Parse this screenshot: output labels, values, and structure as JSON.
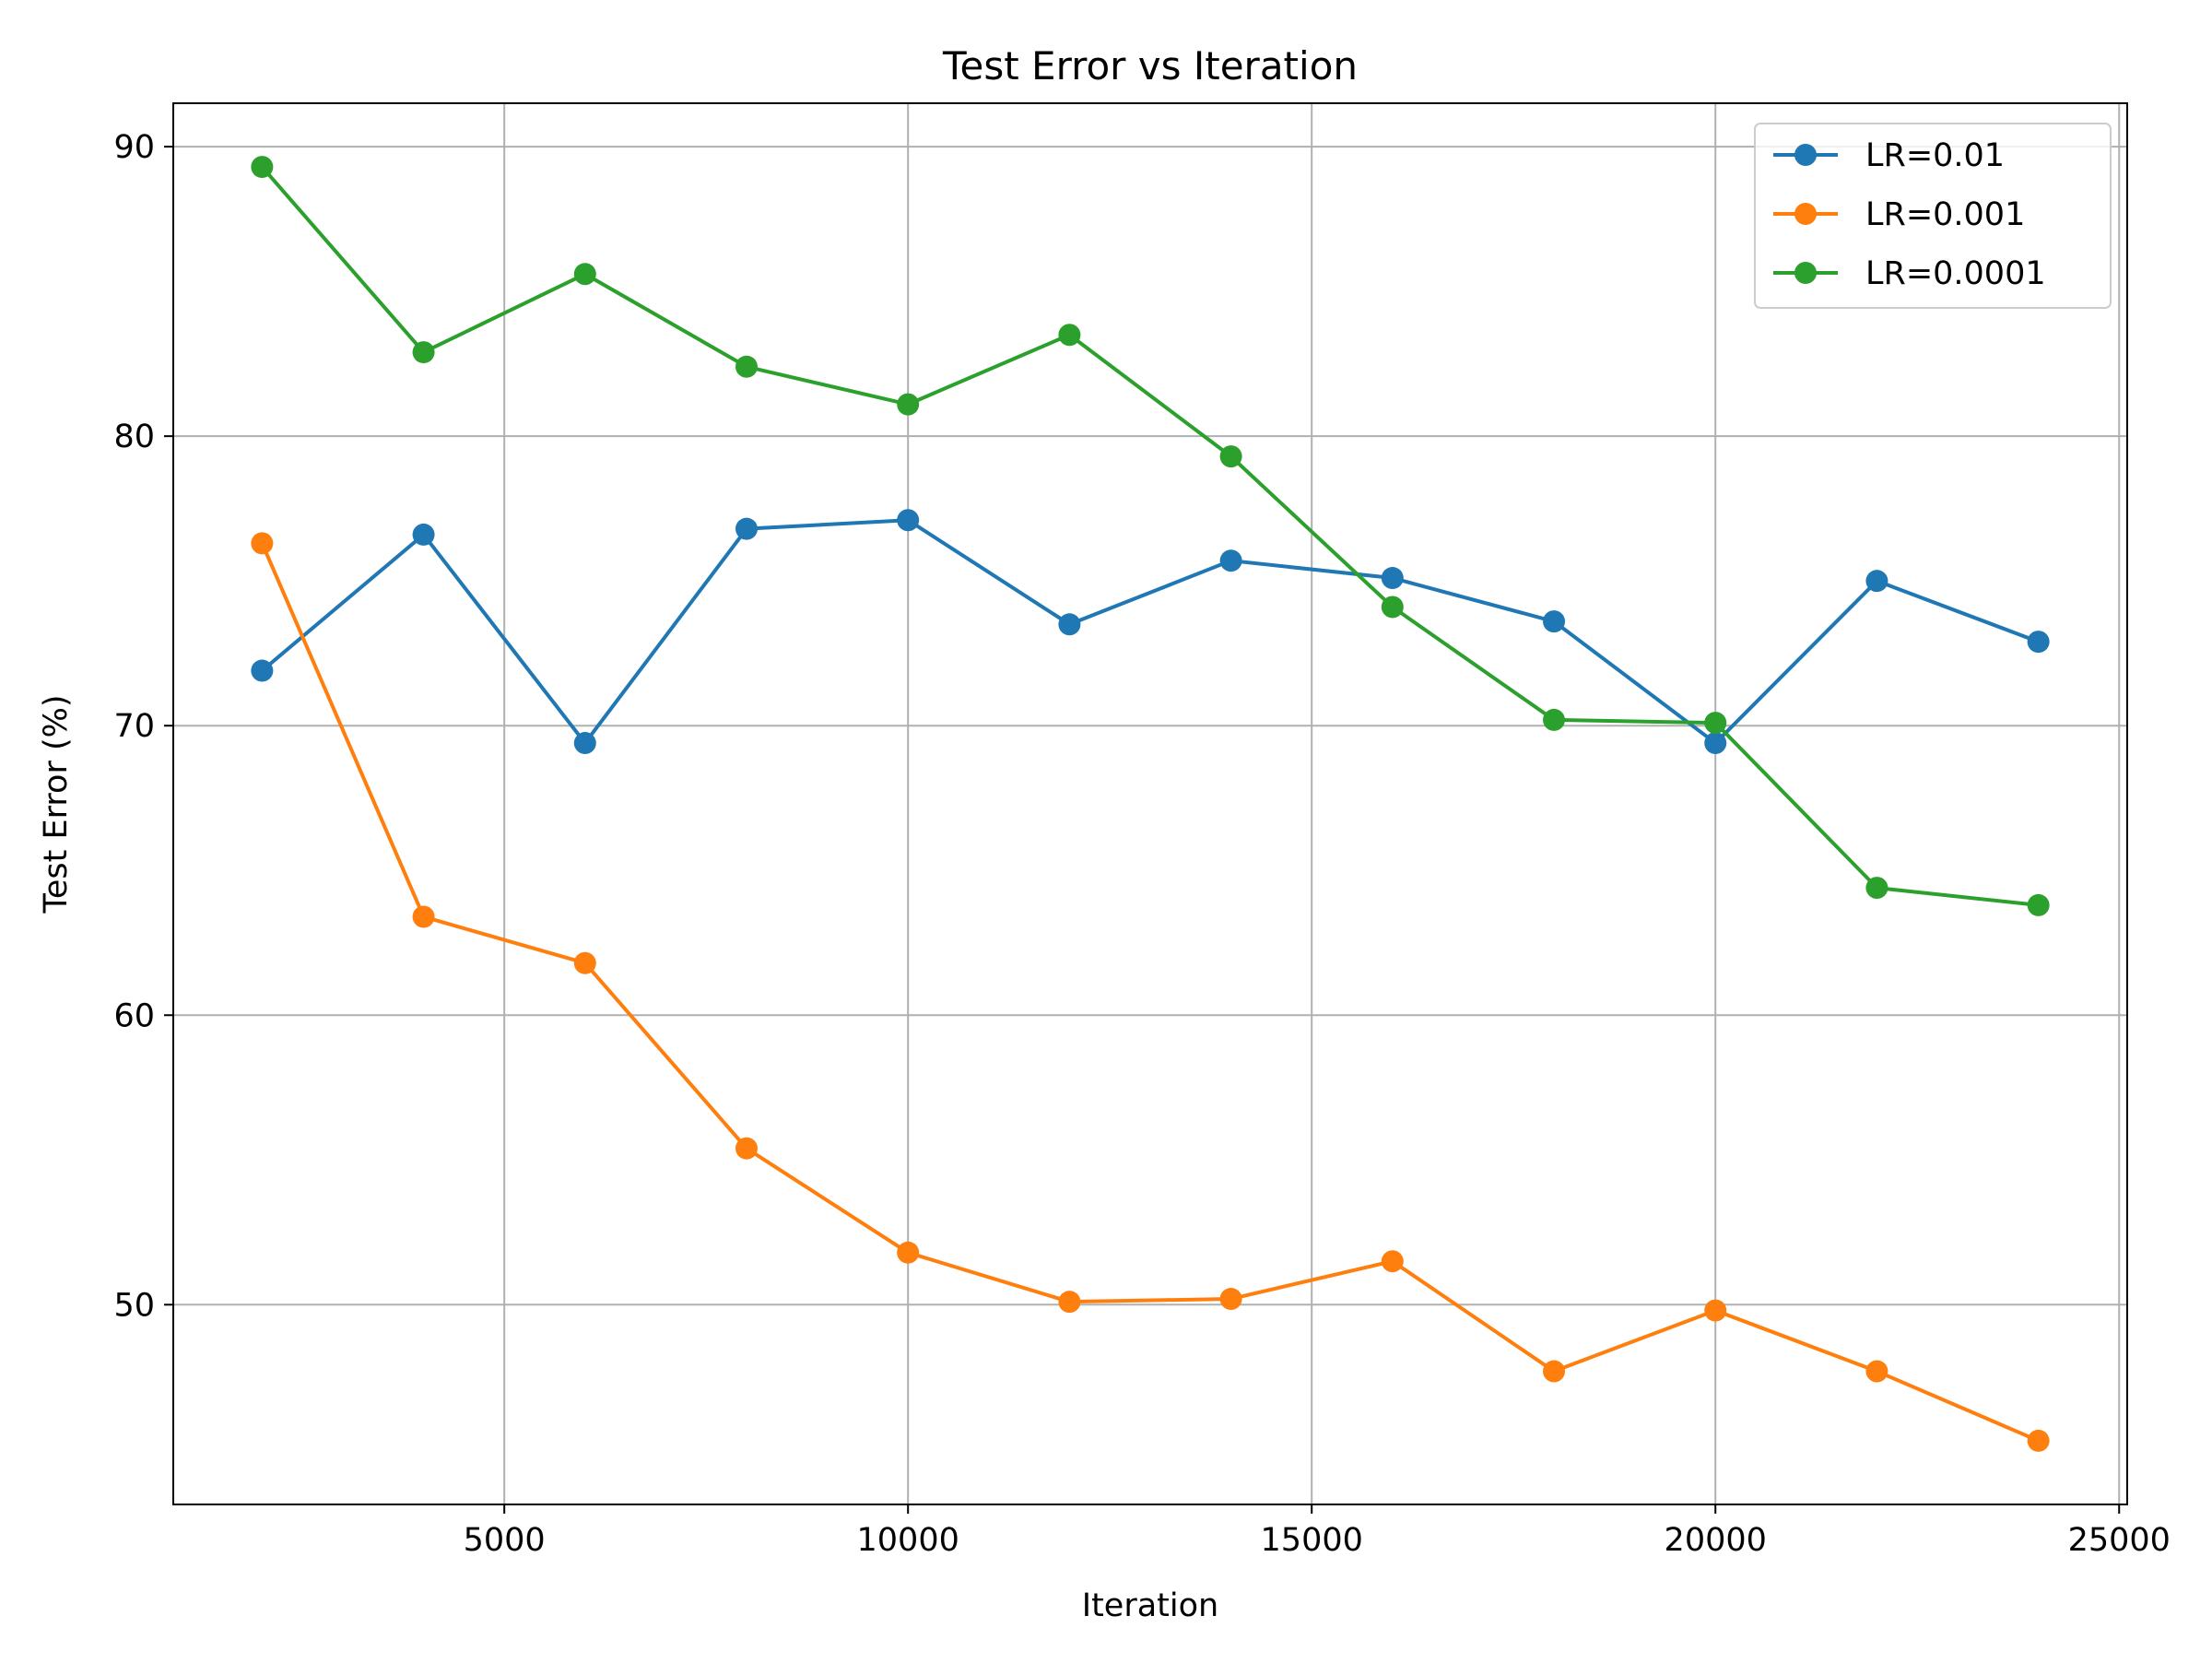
{
  "chart_data": {
    "type": "line",
    "title": "Test Error vs Iteration",
    "xlabel": "Iteration",
    "ylabel": "Test Error (%)",
    "x": [
      2000,
      4000,
      6000,
      8000,
      10000,
      12000,
      14000,
      16000,
      18000,
      20000,
      22000,
      24000
    ],
    "series": [
      {
        "name": "LR=0.01",
        "color": "#1f77b4",
        "values": [
          71.9,
          76.6,
          69.4,
          76.8,
          77.1,
          73.5,
          75.7,
          75.1,
          73.6,
          69.4,
          75.0,
          72.9
        ]
      },
      {
        "name": "LR=0.001",
        "color": "#ff7f0e",
        "values": [
          76.3,
          63.4,
          61.8,
          55.4,
          51.8,
          50.1,
          50.2,
          51.5,
          47.7,
          49.8,
          47.7,
          45.3
        ]
      },
      {
        "name": "LR=0.0001",
        "color": "#2ca02c",
        "values": [
          89.3,
          82.9,
          85.6,
          82.4,
          81.1,
          83.5,
          79.3,
          74.1,
          70.2,
          70.1,
          64.4,
          63.8
        ]
      }
    ],
    "xlim": [
      900,
      25100
    ],
    "ylim": [
      43.1,
      91.5
    ],
    "xticks": [
      5000,
      10000,
      15000,
      20000,
      25000
    ],
    "xtick_labels": [
      "5000",
      "10000",
      "15000",
      "20000",
      "25000"
    ],
    "yticks": [
      50,
      60,
      70,
      80,
      90
    ],
    "ytick_labels": [
      "50",
      "60",
      "70",
      "80",
      "90"
    ],
    "grid": true,
    "legend_position": "top-right",
    "marker": "circle"
  }
}
